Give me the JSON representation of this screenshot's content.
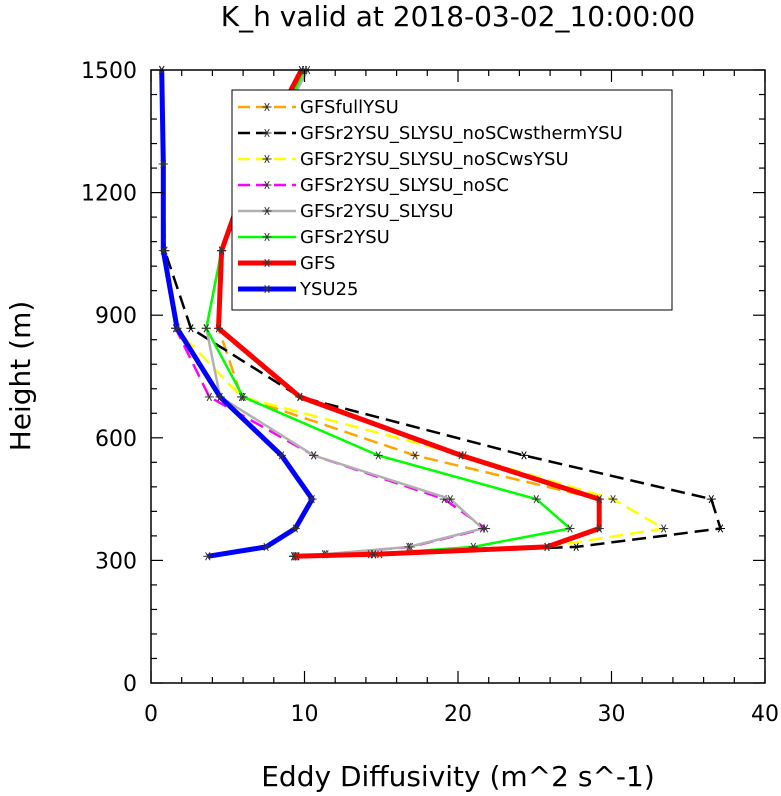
{
  "chart_data": {
    "type": "line",
    "title": "K_h valid at 2018-03-02_10:00:00",
    "xlabel": "Eddy Diffusivity (m^2 s^-1)",
    "ylabel": "Height (m)",
    "xlim": [
      0,
      40
    ],
    "ylim": [
      0,
      1500
    ],
    "xticks": [
      0,
      10,
      20,
      30,
      40
    ],
    "yticks": [
      0,
      300,
      600,
      900,
      1200,
      1500
    ],
    "legend_position": "top-right",
    "grid": false,
    "series": [
      {
        "name": "GFSfullYSU",
        "color": "#FFA500",
        "dash": "dash",
        "width": 2.5,
        "points": [
          [
            9.3,
            310
          ],
          [
            14.9,
            315
          ],
          [
            25.8,
            333
          ],
          [
            29.2,
            378
          ],
          [
            29.2,
            450
          ],
          [
            17.2,
            557
          ],
          [
            5.9,
            700
          ],
          [
            4.4,
            868
          ],
          [
            4.6,
            1058
          ],
          [
            6.6,
            1270
          ],
          [
            9.8,
            1500
          ]
        ]
      },
      {
        "name": "GFSr2YSU_SLYSU_noSCwsthermYSU",
        "color": "#000000",
        "dash": "dash",
        "width": 2.5,
        "points": [
          [
            9.5,
            310
          ],
          [
            14.5,
            315
          ],
          [
            27.7,
            333
          ],
          [
            37.1,
            378
          ],
          [
            36.5,
            450
          ],
          [
            24.3,
            557
          ],
          [
            9.7,
            700
          ],
          [
            2.6,
            868
          ],
          [
            0.9,
            1058
          ],
          [
            0.8,
            1270
          ],
          [
            0.7,
            1500
          ]
        ]
      },
      {
        "name": "GFSr2YSU_SLYSU_noSCwsYSU",
        "color": "#FFFF00",
        "dash": "dash",
        "width": 2.5,
        "points": [
          [
            9.4,
            310
          ],
          [
            14.5,
            315
          ],
          [
            25.8,
            333
          ],
          [
            33.4,
            378
          ],
          [
            30.1,
            450
          ],
          [
            20.4,
            557
          ],
          [
            5.9,
            700
          ],
          [
            1.6,
            868
          ],
          [
            0.9,
            1058
          ],
          [
            0.8,
            1270
          ],
          [
            0.7,
            1500
          ]
        ]
      },
      {
        "name": "GFSr2YSU_SLYSU_noSC",
        "color": "#FF00FF",
        "dash": "dash",
        "width": 2.5,
        "points": [
          [
            9.3,
            310
          ],
          [
            11.4,
            315
          ],
          [
            16.9,
            333
          ],
          [
            21.8,
            378
          ],
          [
            19.1,
            450
          ],
          [
            10.6,
            557
          ],
          [
            3.8,
            700
          ],
          [
            1.6,
            868
          ],
          [
            0.9,
            1058
          ],
          [
            0.8,
            1270
          ],
          [
            0.7,
            1500
          ]
        ]
      },
      {
        "name": "GFSr2YSU_SLYSU",
        "color": "#B0B0B0",
        "dash": "solid",
        "width": 2.5,
        "points": [
          [
            9.3,
            310
          ],
          [
            11.3,
            315
          ],
          [
            16.8,
            333
          ],
          [
            21.6,
            378
          ],
          [
            19.5,
            450
          ],
          [
            10.6,
            557
          ],
          [
            4.5,
            700
          ],
          [
            3.6,
            868
          ],
          [
            4.6,
            1058
          ],
          [
            7.0,
            1270
          ],
          [
            10.2,
            1500
          ]
        ]
      },
      {
        "name": "GFSr2YSU",
        "color": "#00FF00",
        "dash": "solid",
        "width": 2.5,
        "points": [
          [
            9.3,
            310
          ],
          [
            14.3,
            315
          ],
          [
            21.0,
            333
          ],
          [
            27.3,
            378
          ],
          [
            25.1,
            450
          ],
          [
            14.8,
            557
          ],
          [
            6.0,
            700
          ],
          [
            3.6,
            868
          ],
          [
            4.6,
            1058
          ],
          [
            7.0,
            1270
          ],
          [
            10.0,
            1500
          ]
        ]
      },
      {
        "name": "GFS",
        "color": "#FF0000",
        "dash": "solid",
        "width": 5,
        "points": [
          [
            9.3,
            310
          ],
          [
            14.5,
            315
          ],
          [
            25.8,
            333
          ],
          [
            29.2,
            378
          ],
          [
            29.2,
            450
          ],
          [
            20.2,
            557
          ],
          [
            9.7,
            700
          ],
          [
            4.4,
            868
          ],
          [
            4.6,
            1058
          ],
          [
            6.6,
            1270
          ],
          [
            9.8,
            1500
          ]
        ]
      },
      {
        "name": "YSU25",
        "color": "#0000FF",
        "dash": "solid",
        "width": 5,
        "points": [
          [
            3.7,
            310
          ],
          [
            7.5,
            333
          ],
          [
            9.4,
            378
          ],
          [
            10.5,
            450
          ],
          [
            8.5,
            557
          ],
          [
            4.5,
            700
          ],
          [
            1.7,
            868
          ],
          [
            0.8,
            1058
          ],
          [
            0.8,
            1270
          ],
          [
            0.7,
            1500
          ]
        ]
      }
    ]
  }
}
